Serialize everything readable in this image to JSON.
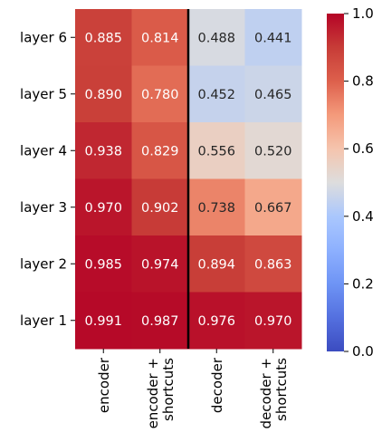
{
  "chart_data": {
    "type": "heatmap",
    "title": "",
    "xlabel": "",
    "ylabel": "",
    "columns": [
      "encoder",
      "encoder +\nshortcuts",
      "decoder",
      "decoder +\nshortcuts"
    ],
    "rows": [
      "layer 6",
      "layer 5",
      "layer 4",
      "layer 3",
      "layer 2",
      "layer 1"
    ],
    "values": [
      [
        0.885,
        0.814,
        0.488,
        0.441
      ],
      [
        0.89,
        0.78,
        0.452,
        0.465
      ],
      [
        0.938,
        0.829,
        0.556,
        0.52
      ],
      [
        0.97,
        0.902,
        0.738,
        0.667
      ],
      [
        0.985,
        0.974,
        0.894,
        0.863
      ],
      [
        0.991,
        0.987,
        0.976,
        0.97
      ]
    ],
    "colormap": "coolwarm",
    "vmin": 0.0,
    "vmax": 1.0,
    "colorbar_ticks": [
      "0.0",
      "0.2",
      "0.4",
      "0.6",
      "0.8",
      "1.0"
    ],
    "separator_after_column": 2,
    "separator_color": "#000000",
    "text_color_dark_cells": "#ffffff",
    "text_color_light_cells": "#262626"
  }
}
